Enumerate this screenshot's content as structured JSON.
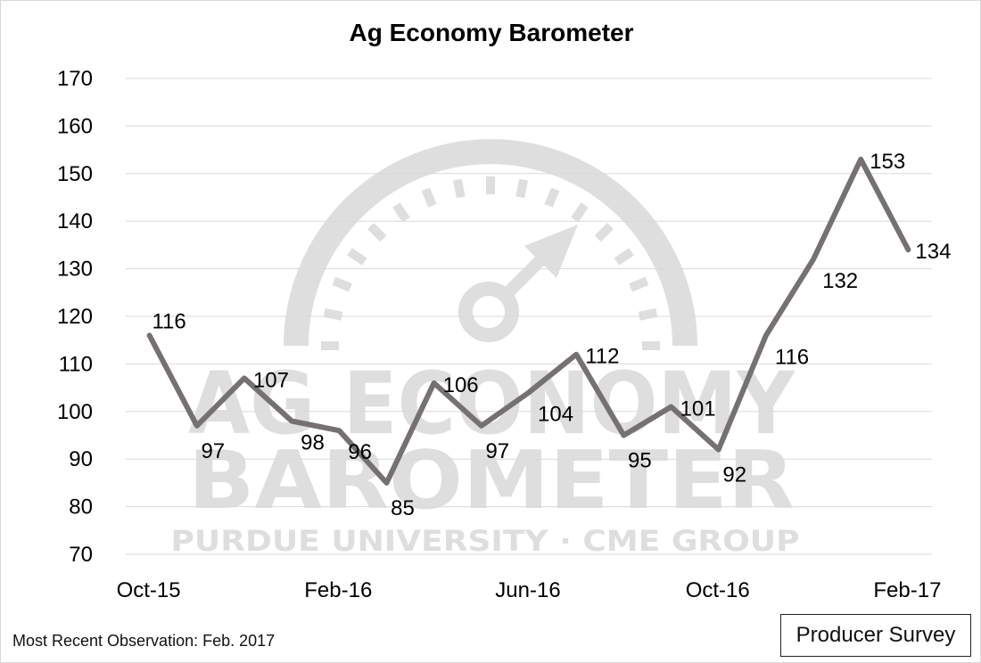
{
  "chart_data": {
    "type": "line",
    "title": "Ag Economy Barometer",
    "xlabel": "",
    "ylabel": "",
    "ylim": [
      70,
      170
    ],
    "yticks": [
      70,
      80,
      90,
      100,
      110,
      120,
      130,
      140,
      150,
      160,
      170
    ],
    "x": [
      "Oct-15",
      "Nov-15",
      "Dec-15",
      "Jan-16",
      "Feb-16",
      "Mar-16",
      "Apr-16",
      "May-16",
      "Jun-16",
      "Jul-16",
      "Aug-16",
      "Sep-16",
      "Oct-16",
      "Nov-16",
      "Dec-16",
      "Jan-17",
      "Feb-17"
    ],
    "xtick_labels": [
      "Oct-15",
      "Feb-16",
      "Jun-16",
      "Oct-16",
      "Feb-17"
    ],
    "series": [
      {
        "values": [
          116,
          97,
          107,
          98,
          96,
          85,
          106,
          97,
          104,
          112,
          95,
          101,
          92,
          116,
          132,
          153,
          134
        ]
      }
    ],
    "grid": true,
    "line_color": "#767171"
  },
  "watermark": {
    "line1": "AG ECONOMY",
    "line2": "BAROMETER",
    "line3": "PURDUE UNIVERSITY · CME GROUP"
  },
  "footer": {
    "note": "Most Recent Observation: Feb. 2017",
    "badge": "Producer Survey"
  }
}
